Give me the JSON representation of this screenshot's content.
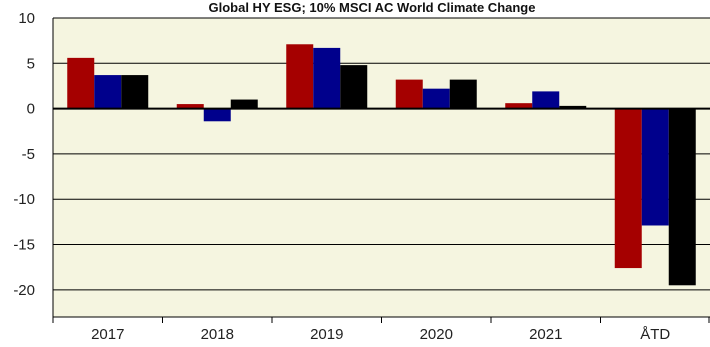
{
  "chart_data": {
    "type": "bar",
    "title": "Global HY ESG; 10% MSCI AC World Climate Change",
    "categories": [
      "2017",
      "2018",
      "2019",
      "2020",
      "2021",
      "ÅTD"
    ],
    "series": [
      {
        "color": "#a50000",
        "values": [
          5.6,
          0.5,
          7.1,
          3.2,
          0.6,
          -17.6
        ]
      },
      {
        "color": "#00008c",
        "values": [
          3.7,
          -1.4,
          6.7,
          2.2,
          1.9,
          -12.9
        ]
      },
      {
        "color": "#000000",
        "values": [
          3.7,
          1.0,
          4.8,
          3.2,
          0.3,
          -19.5
        ]
      }
    ],
    "xlabel": "",
    "ylabel": "",
    "ylim": [
      -23,
      10
    ],
    "yticks": [
      10,
      5,
      0,
      -5,
      -10,
      -15,
      -20
    ],
    "grid": true,
    "background_color": "#f5f5e0"
  }
}
